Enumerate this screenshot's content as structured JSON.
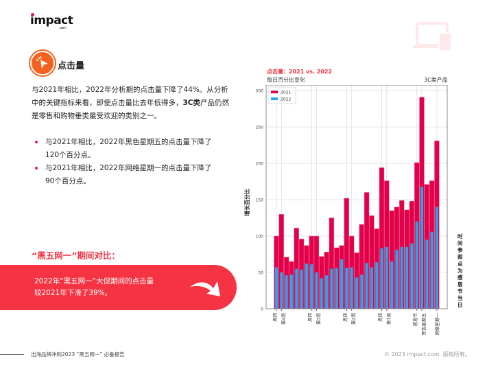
{
  "logo": {
    "text": "impact",
    "suffix": ".com"
  },
  "section": {
    "title": "点击量",
    "icon": "cursor-click-icon"
  },
  "paragraph": {
    "part1": "与2021年相比，2022年分析期的点击量下降了44%。从分析中的关键指标来看，即使点击量比去年低得多，",
    "bold": "3C类",
    "part2": "产品仍然是零售和购物垂类最受欢迎的类别之一。"
  },
  "bullets": [
    "与2021年相比，2022年黑色星期五的点击量下降了120个百分点。",
    "与2021年相比，2022年网络星期一的点击量下降了90个百分点。"
  ],
  "comparison": {
    "title": "“黑五网一”期间对比：",
    "banner_line1": "2022年“黑五网一”大促期间的点击量",
    "banner_line2": "较2021年下滑了39%。",
    "icon": "curved-arrow-icon"
  },
  "footer": {
    "left": "出海品牌冲刺2023 “黑五网一” 必备报告",
    "right": "© 2023 impact.com. 版权所有。"
  },
  "decor_icon": "laptop-phone-icon",
  "colors": {
    "accent": "#f53342",
    "series2021": "#e3004a",
    "series2022": "#1eaaf0",
    "icon_orange": "#f3621f"
  },
  "chart_data": {
    "type": "bar",
    "title": "点击量：2021 vs. 2022",
    "subtitle": "每日百分比变化",
    "category_label": "3C类产品",
    "ylabel": "增长百分比",
    "right_note": "时间参照点为感恩节当日",
    "ylim": [
      0,
      300
    ],
    "yticks": [
      0,
      50,
      100,
      150,
      200,
      250,
      300
    ],
    "grid": true,
    "legend_placement": "top-left",
    "xticks": [
      {
        "index": 0,
        "label": "周四"
      },
      {
        "index": 1,
        "label": "第4周"
      },
      {
        "index": 7,
        "label": "周四"
      },
      {
        "index": 8,
        "label": "第3周"
      },
      {
        "index": 14,
        "label": "周四"
      },
      {
        "index": 15,
        "label": "第2周"
      },
      {
        "index": 21,
        "label": "周四"
      },
      {
        "index": 22,
        "label": "第1周"
      },
      {
        "index": 28,
        "label": "感恩节"
      },
      {
        "index": 29,
        "label": "黑色星期五"
      },
      {
        "index": 32,
        "label": "网络星期一"
      }
    ],
    "series": [
      {
        "name": "2021",
        "values": [
          100,
          130,
          71,
          65,
          111,
          96,
          87,
          100,
          100,
          72,
          78,
          125,
          84,
          87,
          152,
          100,
          77,
          116,
          160,
          128,
          110,
          194,
          176,
          135,
          140,
          149,
          136,
          148,
          201,
          291,
          171,
          176,
          231
        ]
      },
      {
        "name": "2022",
        "values": [
          57,
          50,
          46,
          47,
          55,
          54,
          62,
          61,
          50,
          42,
          46,
          55,
          56,
          68,
          56,
          57,
          43,
          47,
          63,
          57,
          64,
          83,
          85,
          65,
          81,
          85,
          85,
          90,
          120,
          168,
          95,
          106,
          140
        ]
      }
    ]
  }
}
